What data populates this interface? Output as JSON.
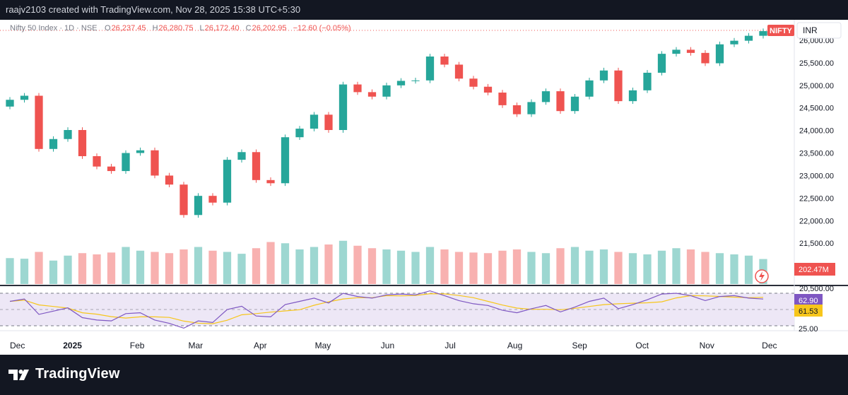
{
  "header": {
    "credit": "raajv2103 created with TradingView.com, Nov 28, 2025 15:38 UTC+5:30"
  },
  "legend": {
    "symbol": "Nifty 50 Index · 1D · NSE",
    "open_label": "O",
    "open": "26,237.45",
    "high_label": "H",
    "high": "26,280.75",
    "low_label": "L",
    "low": "26,172.40",
    "close_label": "C",
    "close": "26,202.95",
    "change": "−12.60 (−0.05%)"
  },
  "currency": "INR",
  "price_tag": "NIFTY",
  "volume_tag": "202.47M",
  "rsi_tags": {
    "rsi": "62.90",
    "rsi_ma": "61.53"
  },
  "footer": {
    "brand": "TradingView"
  },
  "colors": {
    "up": "#26a69a",
    "down": "#ef5350",
    "rsi": "#7e57c2",
    "rsi_ma": "#f7c61b",
    "rsi_band": "#ede7f6"
  },
  "chart_data": [
    {
      "type": "candlestick",
      "title": "Nifty 50 Index · 1D · NSE",
      "x_ticks": [
        "Dec",
        "2025",
        "Feb",
        "Mar",
        "Apr",
        "May",
        "Jun",
        "Jul",
        "Aug",
        "Sep",
        "Oct",
        "Nov",
        "Dec"
      ],
      "y_ticks": [
        "20,500.00",
        "21,000.00",
        "21,500.00",
        "22,000.00",
        "22,500.00",
        "23,000.00",
        "23,500.00",
        "24,000.00",
        "24,500.00",
        "25,000.00",
        "25,500.00",
        "26,000.00"
      ],
      "ylim": [
        20500,
        26300
      ],
      "series": [
        {
          "name": "Close",
          "dates": [
            "2024-12-02",
            "2024-12-09",
            "2024-12-16",
            "2024-12-23",
            "2024-12-30",
            "2025-01-06",
            "2025-01-13",
            "2025-01-20",
            "2025-01-27",
            "2025-02-03",
            "2025-02-10",
            "2025-02-17",
            "2025-02-24",
            "2025-03-03",
            "2025-03-10",
            "2025-03-17",
            "2025-03-24",
            "2025-04-01",
            "2025-04-07",
            "2025-04-14",
            "2025-04-21",
            "2025-04-28",
            "2025-05-05",
            "2025-05-12",
            "2025-05-19",
            "2025-05-26",
            "2025-06-02",
            "2025-06-09",
            "2025-06-16",
            "2025-06-23",
            "2025-06-30",
            "2025-07-07",
            "2025-07-14",
            "2025-07-21",
            "2025-07-28",
            "2025-08-04",
            "2025-08-11",
            "2025-08-18",
            "2025-08-25",
            "2025-09-01",
            "2025-09-08",
            "2025-09-15",
            "2025-09-22",
            "2025-09-29",
            "2025-10-06",
            "2025-10-13",
            "2025-10-20",
            "2025-10-27",
            "2025-11-03",
            "2025-11-10",
            "2025-11-17",
            "2025-11-24",
            "2025-11-28"
          ],
          "values": [
            24680,
            24770,
            23590,
            23810,
            24010,
            23430,
            23200,
            23100,
            23500,
            23560,
            23000,
            22800,
            22125,
            22550,
            22400,
            23350,
            23520,
            22900,
            22830,
            23850,
            24040,
            24350,
            24010,
            25020,
            24850,
            24750,
            25000,
            25100,
            25110,
            25640,
            25460,
            25150,
            24970,
            24840,
            24560,
            24360,
            24630,
            24870,
            24430,
            24750,
            25110,
            25330,
            24650,
            24890,
            25280,
            25700,
            25790,
            25720,
            25490,
            25910,
            25990,
            26100,
            26203
          ]
        },
        {
          "name": "Volume",
          "unit": "M",
          "last": 202.47,
          "values": [
            210,
            205,
            260,
            190,
            230,
            250,
            240,
            255,
            300,
            270,
            260,
            250,
            280,
            300,
            270,
            260,
            245,
            290,
            340,
            330,
            280,
            300,
            320,
            350,
            310,
            290,
            280,
            270,
            260,
            300,
            280,
            260,
            255,
            250,
            270,
            280,
            260,
            250,
            290,
            300,
            270,
            280,
            260,
            250,
            240,
            270,
            290,
            280,
            260,
            250,
            240,
            230,
            202.47
          ]
        },
        {
          "name": "RSI 14",
          "last": 62.9,
          "values": [
            60,
            63,
            44,
            48,
            52,
            40,
            37,
            36,
            45,
            46,
            37,
            33,
            27,
            36,
            34,
            50,
            54,
            42,
            41,
            56,
            60,
            64,
            58,
            70,
            66,
            64,
            68,
            69,
            68,
            73,
            67,
            61,
            57,
            55,
            49,
            46,
            51,
            55,
            47,
            53,
            60,
            64,
            51,
            56,
            62,
            69,
            70,
            67,
            61,
            66,
            67,
            64,
            62.9
          ]
        },
        {
          "name": "RSI MA",
          "last": 61.53
        }
      ]
    }
  ]
}
